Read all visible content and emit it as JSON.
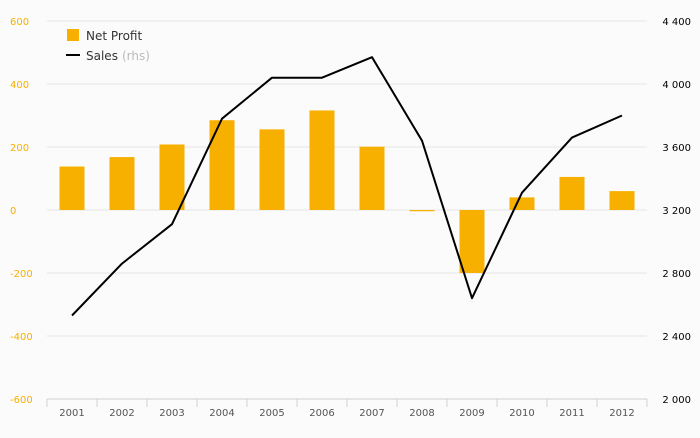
{
  "chart_data": {
    "type": "bar+line",
    "categories": [
      "2001",
      "2002",
      "2003",
      "2004",
      "2005",
      "2006",
      "2007",
      "2008",
      "2009",
      "2010",
      "2011",
      "2012"
    ],
    "series": [
      {
        "name": "Net Profit",
        "type": "bar",
        "axis": "left",
        "color": "#f7b000",
        "values": [
          138,
          168,
          208,
          285,
          256,
          316,
          201,
          -4,
          -200,
          40,
          105,
          60
        ]
      },
      {
        "name": "Sales",
        "name_suffix": "(rhs)",
        "type": "line",
        "axis": "right",
        "color": "#000000",
        "values": [
          2530,
          2860,
          3110,
          3780,
          4040,
          4040,
          4170,
          3640,
          2640,
          3310,
          3660,
          3800
        ]
      }
    ],
    "left_axis": {
      "min": -600,
      "max": 600,
      "ticks": [
        600,
        400,
        200,
        0,
        -200,
        -400,
        -600
      ],
      "tick_labels": [
        "600",
        "400",
        "200",
        "0",
        "-200",
        "-400",
        "-600"
      ],
      "color": "#f7b000"
    },
    "right_axis": {
      "min": 2000,
      "max": 4400,
      "ticks": [
        4400,
        4000,
        3600,
        3200,
        2800,
        2400,
        2000
      ],
      "tick_labels": [
        "4 400",
        "4 000",
        "3 600",
        "3 200",
        "2 800",
        "2 400",
        "2 000"
      ],
      "color": "#000000"
    },
    "grid": true,
    "legend": "top-left"
  }
}
